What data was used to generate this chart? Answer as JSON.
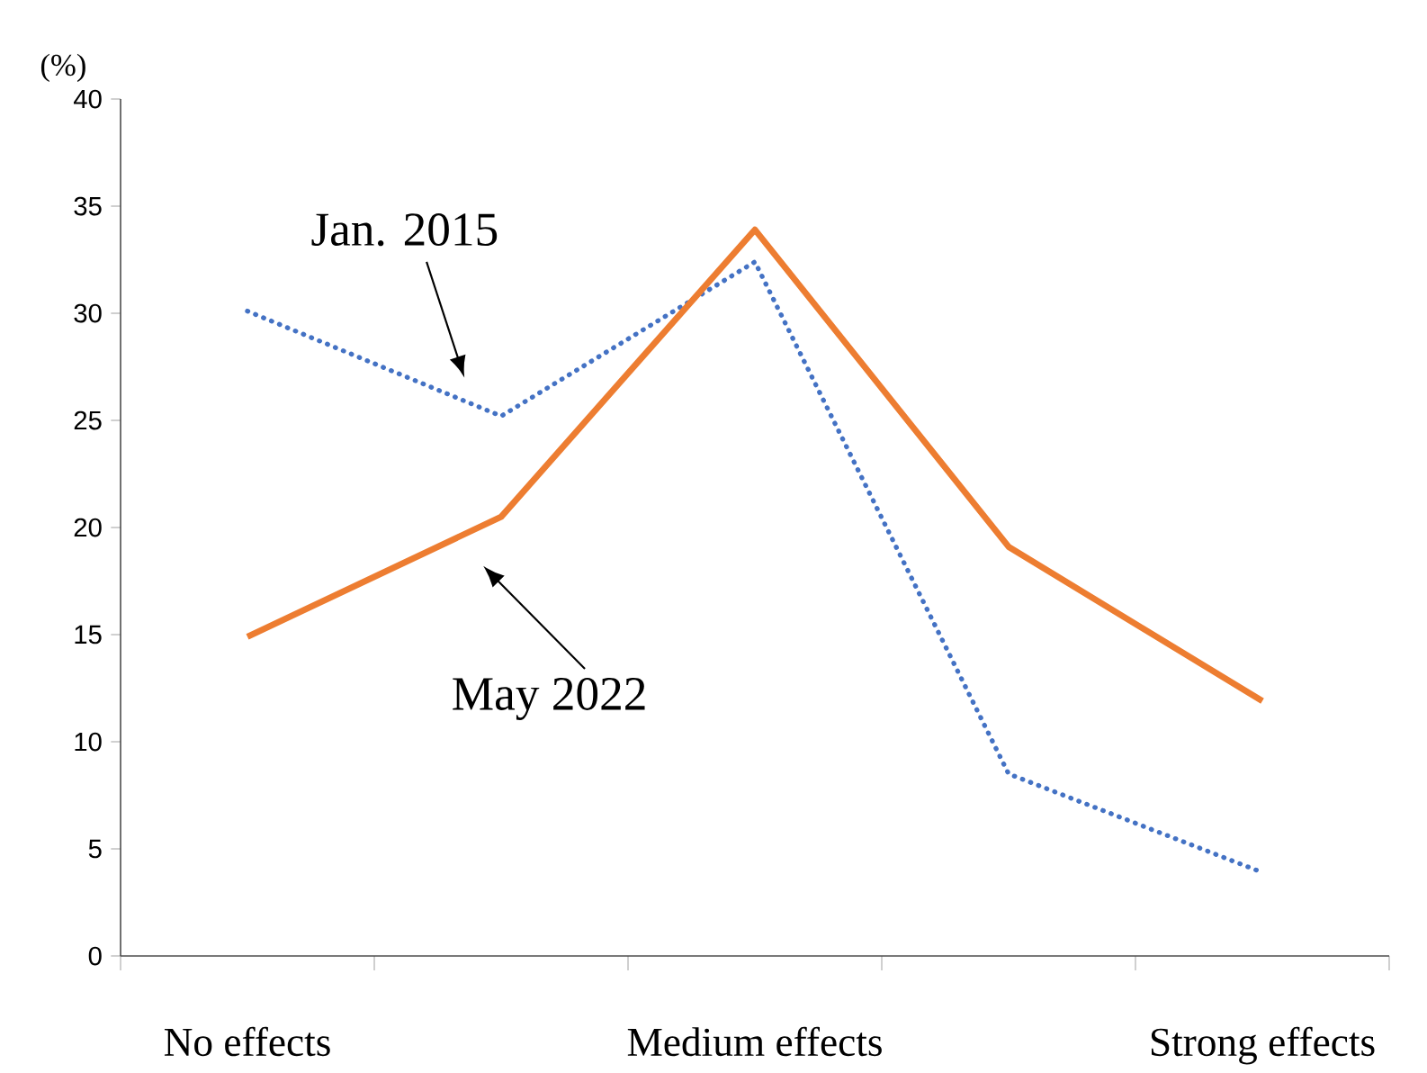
{
  "chart_data": {
    "type": "line",
    "ylabel": "(%)",
    "categories": [
      "No effects",
      null,
      "Medium effects",
      null,
      "Strong effects"
    ],
    "series": [
      {
        "name": "Jan. 2015",
        "color": "#4472c4",
        "line_style": "dotted",
        "values": [
          30.1,
          25.2,
          32.4,
          8.5,
          3.9
        ]
      },
      {
        "name": "May 2022",
        "color": "#ed7d31",
        "line_style": "solid",
        "values": [
          14.9,
          20.5,
          33.9,
          19.1,
          11.9
        ]
      }
    ],
    "ylim": [
      0,
      40
    ],
    "yticks": [
      0,
      5,
      10,
      15,
      20,
      25,
      30,
      35,
      40
    ],
    "grid": false
  }
}
